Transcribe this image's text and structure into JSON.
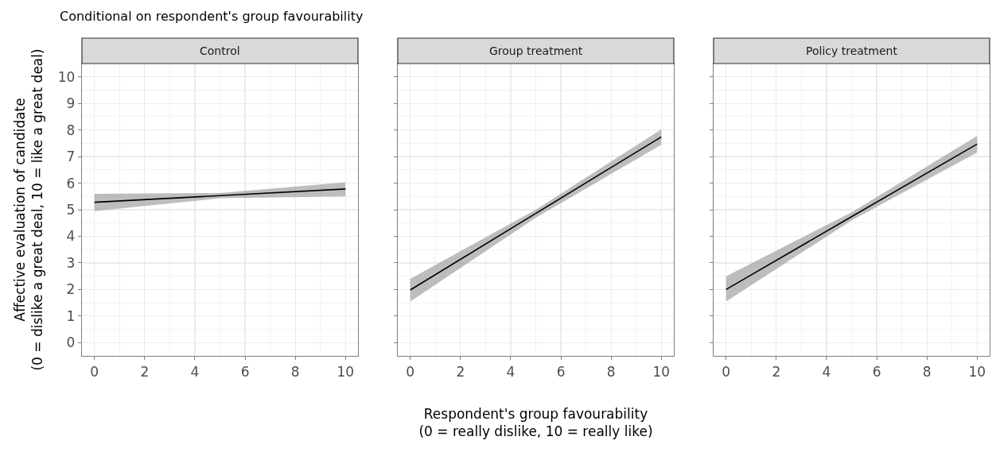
{
  "chart_data": [
    {
      "type": "line",
      "title": "Control",
      "subtitle": "Conditional on respondent's group favourability",
      "ylabel": "Affective evaluation of candidate\n(0 = dislike a great deal, 10 = like a great deal)",
      "x": [
        0,
        5,
        10
      ],
      "xlim": [
        -0.5,
        10.5
      ],
      "ylim": [
        -0.5,
        10.5
      ],
      "xticks": [
        0,
        2,
        4,
        6,
        8,
        10
      ],
      "yticks": [
        0,
        1,
        2,
        3,
        4,
        5,
        6,
        7,
        8,
        9,
        10
      ],
      "grid": true,
      "series": [
        {
          "color": "#000000",
          "values": [
            5.28,
            5.53,
            5.78
          ],
          "lower": [
            4.95,
            5.43,
            5.5
          ],
          "upper": [
            5.6,
            5.63,
            6.03
          ]
        }
      ]
    },
    {
      "type": "line",
      "title": "Group treatment",
      "xlabel": "Respondent's group favourability\n(0 = really dislike, 10 = really like)",
      "x": [
        0,
        5,
        10
      ],
      "xlim": [
        -0.5,
        10.5
      ],
      "ylim": [
        -0.5,
        10.5
      ],
      "xticks": [
        0,
        2,
        4,
        6,
        8,
        10
      ],
      "yticks": [
        0,
        1,
        2,
        3,
        4,
        5,
        6,
        7,
        8,
        9,
        10
      ],
      "grid": true,
      "tick_labels": "x",
      "series": [
        {
          "color": "#000000",
          "values": [
            1.98,
            4.86,
            7.74
          ],
          "lower": [
            1.55,
            4.7,
            7.44
          ],
          "upper": [
            2.4,
            5.0,
            8.02
          ]
        }
      ]
    },
    {
      "type": "line",
      "title": "Policy treatment",
      "x": [
        0,
        5,
        10
      ],
      "xlim": [
        -0.5,
        10.5
      ],
      "ylim": [
        -0.5,
        10.5
      ],
      "xticks": [
        0,
        2,
        4,
        6,
        8,
        10
      ],
      "yticks": [
        0,
        1,
        2,
        3,
        4,
        5,
        6,
        7,
        8,
        9,
        10
      ],
      "grid": true,
      "tick_labels": "x",
      "series": [
        {
          "color": "#000000",
          "values": [
            2.0,
            4.74,
            7.47
          ],
          "lower": [
            1.55,
            4.6,
            7.15
          ],
          "upper": [
            2.5,
            4.9,
            7.78
          ]
        }
      ]
    }
  ]
}
